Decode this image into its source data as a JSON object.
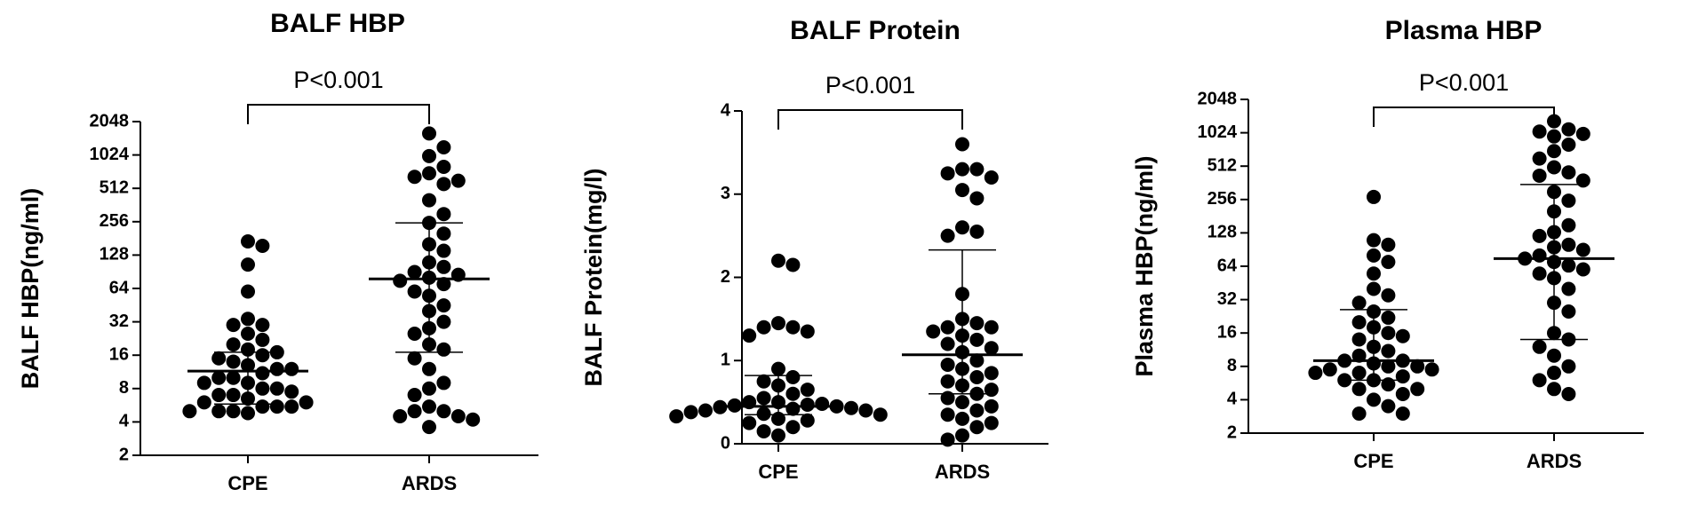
{
  "chart_data": [
    {
      "type": "dotplot",
      "title": "BALF HBP",
      "ylabel": "BALF HBP(ng/ml)",
      "annotation": "P<0.001",
      "categories": [
        "CPE",
        "ARDS"
      ],
      "log_base": 2,
      "color": "#000000",
      "ylim": [
        2,
        2048
      ],
      "yticks": [
        2,
        4,
        8,
        16,
        32,
        64,
        128,
        256,
        512,
        1024,
        2048
      ],
      "groups": [
        {
          "values": [
            170,
            155,
            105,
            60,
            34,
            30,
            30,
            25,
            22,
            20,
            18,
            17,
            16,
            15,
            14,
            13,
            12,
            12,
            11,
            10,
            10,
            9,
            9,
            8,
            8,
            7.5,
            7,
            7,
            6.5,
            6,
            6,
            5.5,
            5.5,
            5.5,
            5,
            5,
            5,
            4.8
          ],
          "median": 11.5,
          "q1": 5.8,
          "q3": 17
        },
        {
          "values": [
            1600,
            1200,
            1000,
            800,
            700,
            650,
            600,
            560,
            400,
            300,
            250,
            200,
            160,
            140,
            110,
            100,
            90,
            85,
            80,
            75,
            70,
            60,
            55,
            45,
            40,
            32,
            28,
            25,
            20,
            18,
            15,
            12,
            9,
            8,
            7,
            5.5,
            5,
            5,
            4.5,
            4.5,
            4.2,
            3.6
          ],
          "median": 78,
          "q1": 17,
          "q3": 250
        }
      ]
    },
    {
      "type": "dotplot",
      "title": "BALF Protein",
      "ylabel": "BALF Protein(mg/l)",
      "annotation": "P<0.001",
      "categories": [
        "CPE",
        "ARDS"
      ],
      "color": "#000000",
      "ylim": [
        0,
        4
      ],
      "yticks": [
        0,
        1,
        2,
        3,
        4
      ],
      "groups": [
        {
          "values": [
            2.2,
            2.15,
            1.45,
            1.4,
            1.4,
            1.35,
            1.3,
            0.9,
            0.8,
            0.75,
            0.7,
            0.65,
            0.6,
            0.55,
            0.5,
            0.5,
            0.48,
            0.47,
            0.46,
            0.45,
            0.44,
            0.43,
            0.42,
            0.4,
            0.4,
            0.38,
            0.36,
            0.35,
            0.33,
            0.3,
            0.28,
            0.25,
            0.2,
            0.15,
            0.1
          ],
          "median": 0.45,
          "q1": 0.35,
          "q3": 0.82
        },
        {
          "values": [
            3.6,
            3.3,
            3.3,
            3.25,
            3.2,
            3.05,
            2.95,
            2.6,
            2.55,
            2.5,
            1.8,
            1.5,
            1.45,
            1.4,
            1.4,
            1.35,
            1.3,
            1.25,
            1.2,
            1.15,
            1.1,
            1.0,
            0.95,
            0.9,
            0.85,
            0.8,
            0.75,
            0.7,
            0.65,
            0.6,
            0.55,
            0.5,
            0.45,
            0.4,
            0.35,
            0.3,
            0.25,
            0.2,
            0.1,
            0.05
          ],
          "median": 1.07,
          "q1": 0.6,
          "q3": 2.33
        }
      ]
    },
    {
      "type": "dotplot",
      "title": "Plasma HBP",
      "ylabel": "Plasma HBP(ng/ml)",
      "annotation": "P<0.001",
      "categories": [
        "CPE",
        "ARDS"
      ],
      "log_base": 2,
      "color": "#000000",
      "ylim": [
        2,
        2048
      ],
      "yticks": [
        2,
        4,
        8,
        16,
        32,
        64,
        128,
        256,
        512,
        1024,
        2048
      ],
      "groups": [
        {
          "values": [
            270,
            110,
            100,
            80,
            70,
            55,
            40,
            35,
            30,
            25,
            22,
            20,
            18,
            16,
            15,
            14,
            12,
            11,
            10,
            9,
            9,
            8.5,
            8,
            8,
            7.5,
            7.5,
            7,
            7,
            6.5,
            6,
            6,
            5.5,
            5,
            5,
            4.5,
            4,
            3.5,
            3,
            3
          ],
          "median": 9,
          "q1": 6,
          "q3": 26
        },
        {
          "values": [
            1300,
            1100,
            1050,
            1000,
            950,
            800,
            700,
            600,
            500,
            450,
            420,
            380,
            300,
            250,
            200,
            150,
            130,
            120,
            100,
            95,
            90,
            80,
            75,
            70,
            65,
            60,
            55,
            50,
            40,
            30,
            25,
            16,
            14,
            12,
            10,
            8,
            7,
            6,
            5,
            4.5
          ],
          "median": 75,
          "q1": 14,
          "q3": 350
        }
      ]
    }
  ]
}
